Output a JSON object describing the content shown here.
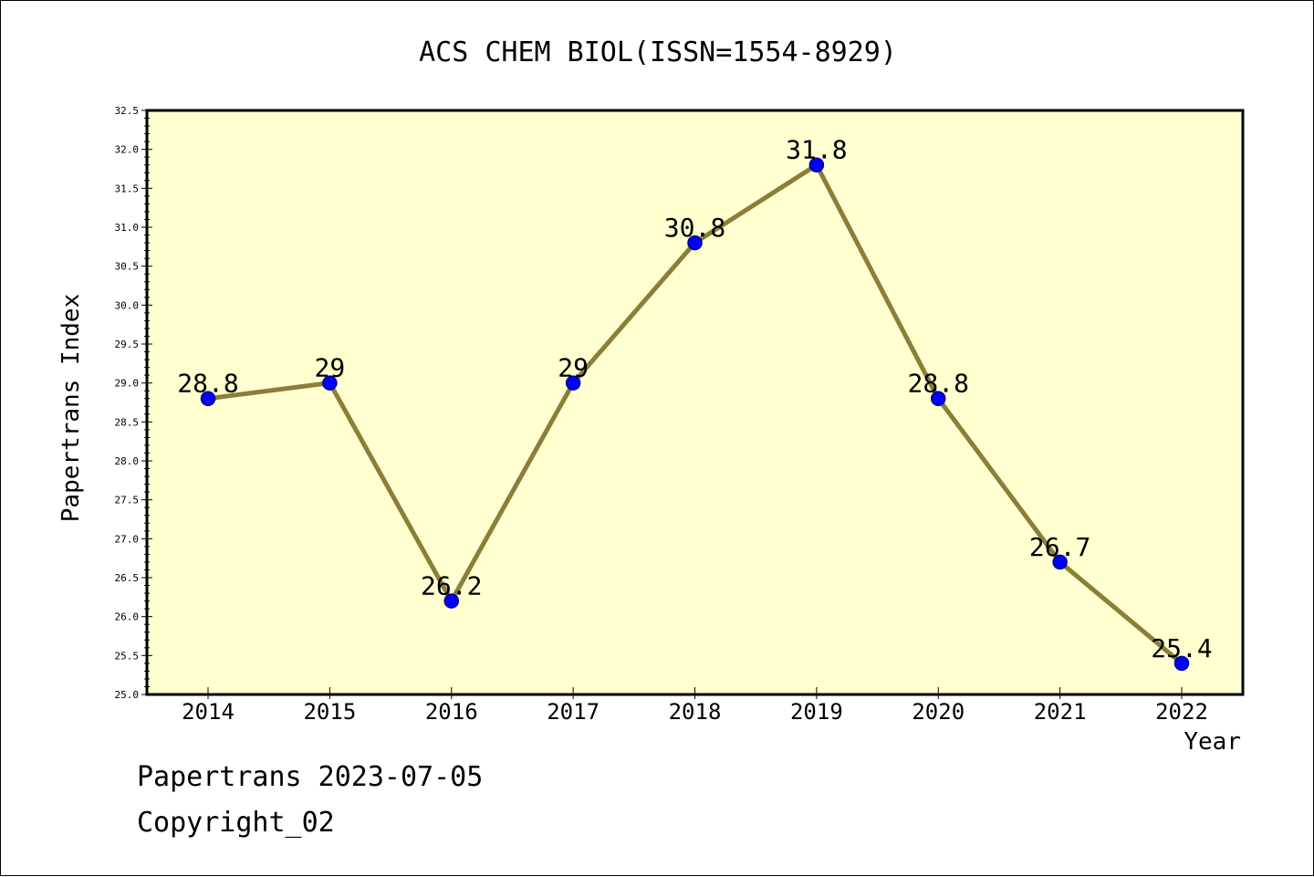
{
  "chart_data": {
    "type": "line",
    "title": "ACS CHEM BIOL(ISSN=1554-8929)",
    "xlabel": "Year",
    "ylabel": "Papertrans Index",
    "categories": [
      "2014",
      "2015",
      "2016",
      "2017",
      "2018",
      "2019",
      "2020",
      "2021",
      "2022"
    ],
    "series": [
      {
        "values": [
          28.8,
          29,
          26.2,
          29,
          30.8,
          31.8,
          28.8,
          26.7,
          25.4
        ],
        "labels": [
          "28.8",
          "29",
          "26.2",
          "29",
          "30.8",
          "31.8",
          "28.8",
          "26.7",
          "25.4"
        ]
      }
    ],
    "ylim": [
      25.0,
      32.5
    ],
    "yticks": [
      "25.0",
      "25.5",
      "26.0",
      "26.5",
      "27.0",
      "27.5",
      "28.0",
      "28.5",
      "29.0",
      "29.5",
      "30.0",
      "30.5",
      "31.0",
      "31.5",
      "32.0",
      "32.5"
    ],
    "grid": false,
    "colors": {
      "plot_background": "#ffffd0",
      "line": "#8b7d3a",
      "marker": "#0000ff"
    }
  },
  "footer": {
    "line1": "Papertrans 2023-07-05",
    "line2": "Copyright_02"
  }
}
